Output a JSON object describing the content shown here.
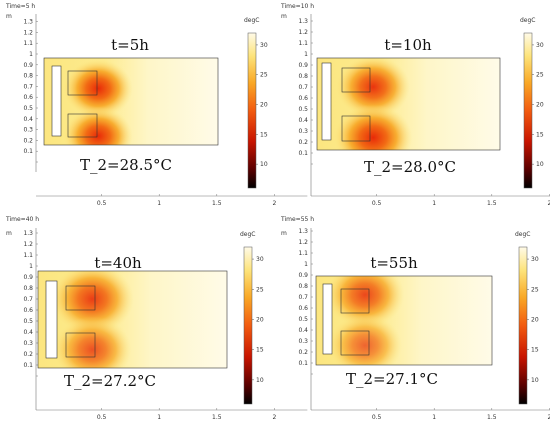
{
  "colors": {
    "hot": "#e82a08",
    "warm": "#f7a21e",
    "mild": "#fce680",
    "cool": "#fffbe8"
  },
  "colorbar": {
    "unit": "degC",
    "ticks": [
      "30",
      "25",
      "20",
      "15",
      "10"
    ],
    "range": [
      6,
      32
    ]
  },
  "panels": [
    {
      "id": "p1",
      "time_label": "Time=5 h",
      "axis_unit": "m",
      "title": "t=5h",
      "temp": "T_2=28.5°C",
      "y_ticks": [
        "1.4",
        "1.3",
        "1.2",
        "1.1",
        "1",
        "0.9",
        "0.8",
        "0.7",
        "0.6",
        "0.5",
        "0.4",
        "0.3",
        "0.2",
        "0.1",
        "0"
      ],
      "x_ticks": [
        "0.5",
        "1",
        "1.5",
        "2"
      ],
      "heat": [
        {
          "cx": 0.47,
          "cy": 0.68,
          "r": 0.3,
          "intensity": 1.0
        },
        {
          "cx": 0.47,
          "cy": 0.24,
          "r": 0.3,
          "intensity": 1.0
        }
      ]
    },
    {
      "id": "p2",
      "time_label": "Time=10 h",
      "axis_unit": "m",
      "title": "t=10h",
      "temp": "T_2=28.0°C",
      "y_ticks": [
        "1.4",
        "1.3",
        "1.2",
        "1.1",
        "1",
        "0.9",
        "0.8",
        "0.7",
        "0.6",
        "0.5",
        "0.4",
        "0.3",
        "0.2",
        "0.1",
        "0"
      ],
      "x_ticks": [
        "0.5",
        "1",
        "1.5",
        "2"
      ],
      "heat": [
        {
          "cx": 0.47,
          "cy": 0.7,
          "r": 0.32,
          "intensity": 0.95
        },
        {
          "cx": 0.47,
          "cy": 0.24,
          "r": 0.34,
          "intensity": 1.0
        }
      ]
    },
    {
      "id": "p3",
      "time_label": "Time=40 h",
      "axis_unit": "m",
      "title": "t=40h",
      "temp": "T_2=27.2°C",
      "y_ticks": [
        "1.4",
        "1.3",
        "1.2",
        "1.1",
        "1",
        "0.9",
        "0.8",
        "0.7",
        "0.6",
        "0.5",
        "0.4",
        "0.3",
        "0.2",
        "0.1",
        "0"
      ],
      "x_ticks": [
        "0.5",
        "1",
        "1.5",
        "2"
      ],
      "heat": [
        {
          "cx": 0.42,
          "cy": 0.7,
          "r": 0.36,
          "intensity": 0.9
        },
        {
          "cx": 0.42,
          "cy": 0.24,
          "r": 0.34,
          "intensity": 0.8
        }
      ]
    },
    {
      "id": "p4",
      "time_label": "Time=55 h",
      "axis_unit": "m",
      "title": "t=55h",
      "temp": "T_2=27.1°C",
      "y_ticks": [
        "1.4",
        "1.3",
        "1.2",
        "1.1",
        "1",
        "0.9",
        "0.8",
        "0.7",
        "0.6",
        "0.5",
        "0.4",
        "0.3",
        "0.2",
        "0.1",
        "0"
      ],
      "x_ticks": [
        "0.5",
        "1",
        "1.5",
        "2"
      ],
      "heat": [
        {
          "cx": 0.4,
          "cy": 0.72,
          "r": 0.34,
          "intensity": 0.85
        },
        {
          "cx": 0.4,
          "cy": 0.26,
          "r": 0.32,
          "intensity": 0.7
        }
      ]
    }
  ]
}
